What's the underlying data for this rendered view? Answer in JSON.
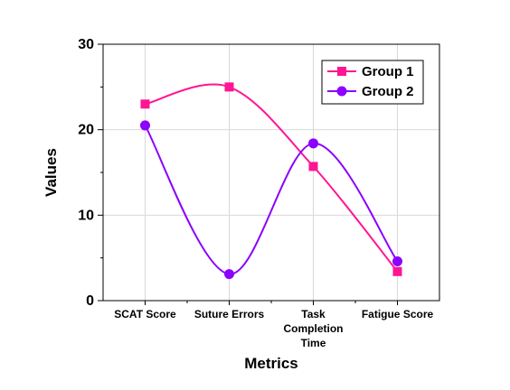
{
  "chart_data": {
    "type": "line",
    "categories": [
      [
        "SCAT Score"
      ],
      [
        "Suture Errors"
      ],
      [
        "Task",
        "Completion",
        "Time"
      ],
      [
        "Fatigue Score"
      ]
    ],
    "series": [
      {
        "name": "Group 1",
        "values": [
          23.0,
          25.0,
          15.7,
          3.4
        ],
        "color": "#ff1493",
        "marker": "square"
      },
      {
        "name": "Group 2",
        "values": [
          20.5,
          3.1,
          18.4,
          4.6
        ],
        "color": "#8b00ff",
        "marker": "circle"
      }
    ],
    "xlabel": "Metrics",
    "ylabel": "Values",
    "ylim": [
      0,
      30
    ],
    "yticks": [
      0,
      10,
      20,
      30
    ],
    "grid": true,
    "legend_position": "top-right",
    "curve": "smooth"
  }
}
